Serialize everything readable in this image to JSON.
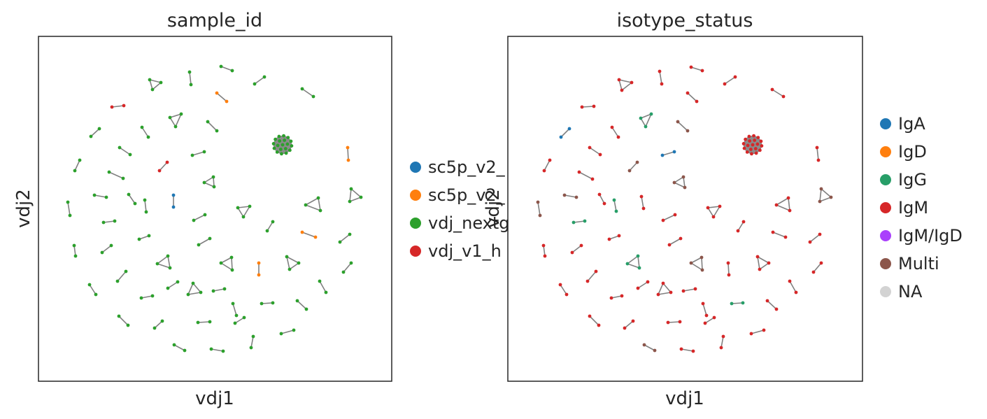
{
  "chart_data": [
    {
      "type": "scatter",
      "title": "sample_id",
      "xlabel": "vdj1",
      "ylabel": "vdj2",
      "legend_position": "right",
      "categories": [
        {
          "name": "sc5p_v2_",
          "color": "#1f77b4"
        },
        {
          "name": "sc5p_v2_",
          "color": "#ff7f0e"
        },
        {
          "name": "vdj_nextg",
          "color": "#2ca02c"
        },
        {
          "name": "vdj_v1_h",
          "color": "#d62728"
        }
      ]
    },
    {
      "type": "scatter",
      "title": "isotype_status",
      "xlabel": "vdj1",
      "ylabel": "vdj2",
      "legend_position": "right",
      "categories": [
        {
          "name": "IgA",
          "color": "#1f77b4"
        },
        {
          "name": "IgD",
          "color": "#ff7f0e"
        },
        {
          "name": "IgG",
          "color": "#279e68"
        },
        {
          "name": "IgM",
          "color": "#d62728"
        },
        {
          "name": "IgM/IgD",
          "color": "#aa40fc"
        },
        {
          "name": "Multi",
          "color": "#8c564b"
        },
        {
          "name": "NA",
          "color": "#d3d3d3"
        }
      ]
    }
  ]
}
